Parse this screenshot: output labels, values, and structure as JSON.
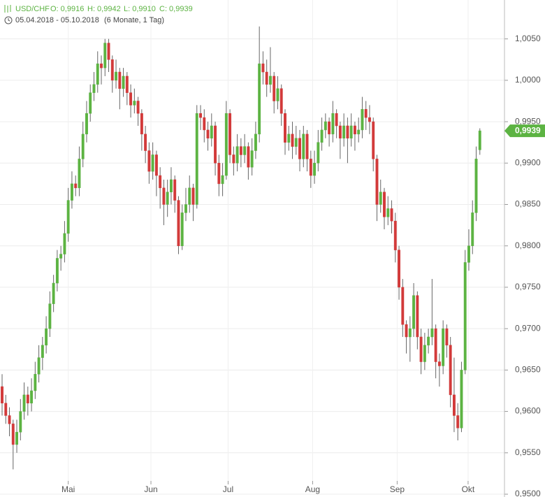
{
  "chart_data": {
    "type": "candlestick",
    "header": {
      "symbol": "USD/CHF",
      "ohlc": [
        "O: 0,9916",
        "H: 0,9942",
        "L: 0,9910",
        "C: 0,9939"
      ],
      "range": "05.04.2018 - 05.10.2018",
      "period": "(6 Monate, 1 Tag)"
    },
    "up_color": "#5cb342",
    "down_color": "#d23a3a",
    "grid": true,
    "ylim": [
      0.95,
      1.0097
    ],
    "yticks": [
      {
        "value": 0.95,
        "label": "0,9500"
      },
      {
        "value": 0.955,
        "label": "0,9550"
      },
      {
        "value": 0.96,
        "label": "0,9600"
      },
      {
        "value": 0.965,
        "label": "0,9650"
      },
      {
        "value": 0.97,
        "label": "0,9700"
      },
      {
        "value": 0.975,
        "label": "0,9750"
      },
      {
        "value": 0.98,
        "label": "0,9800"
      },
      {
        "value": 0.985,
        "label": "0,9850"
      },
      {
        "value": 0.99,
        "label": "0,9900"
      },
      {
        "value": 0.995,
        "label": "0,9950"
      },
      {
        "value": 1.0,
        "label": "1,0000"
      },
      {
        "value": 1.005,
        "label": "1,0050"
      }
    ],
    "xlim": [
      -0.57,
      136.7
    ],
    "xticks": [
      {
        "value": 18,
        "label": "Mai"
      },
      {
        "value": 40.5,
        "label": "Jun"
      },
      {
        "value": 61.5,
        "label": "Jul"
      },
      {
        "value": 84.5,
        "label": "Aug"
      },
      {
        "value": 107.5,
        "label": "Sep"
      },
      {
        "value": 126.8,
        "label": "Okt"
      }
    ],
    "last_price": {
      "value": 0.9939,
      "label": "0,9939"
    },
    "candles": [
      [
        0.963,
        0.9645,
        0.9595,
        0.961
      ],
      [
        0.961,
        0.962,
        0.9585,
        0.9595
      ],
      [
        0.9595,
        0.9605,
        0.957,
        0.9585
      ],
      [
        0.9585,
        0.959,
        0.953,
        0.956
      ],
      [
        0.956,
        0.959,
        0.955,
        0.9575
      ],
      [
        0.9575,
        0.9615,
        0.9565,
        0.96
      ],
      [
        0.96,
        0.9635,
        0.959,
        0.962
      ],
      [
        0.962,
        0.963,
        0.9595,
        0.961
      ],
      [
        0.961,
        0.964,
        0.96,
        0.9625
      ],
      [
        0.9625,
        0.966,
        0.9615,
        0.9645
      ],
      [
        0.9645,
        0.968,
        0.9635,
        0.9665
      ],
      [
        0.9665,
        0.969,
        0.965,
        0.968
      ],
      [
        0.968,
        0.9715,
        0.967,
        0.97
      ],
      [
        0.97,
        0.9745,
        0.969,
        0.973
      ],
      [
        0.973,
        0.9765,
        0.972,
        0.9755
      ],
      [
        0.9755,
        0.9795,
        0.9745,
        0.9785
      ],
      [
        0.9785,
        0.98,
        0.977,
        0.979
      ],
      [
        0.979,
        0.983,
        0.978,
        0.9815
      ],
      [
        0.9815,
        0.987,
        0.9805,
        0.9855
      ],
      [
        0.9855,
        0.989,
        0.9845,
        0.9875
      ],
      [
        0.9875,
        0.9885,
        0.986,
        0.987
      ],
      [
        0.987,
        0.992,
        0.986,
        0.9905
      ],
      [
        0.9905,
        0.995,
        0.9895,
        0.9935
      ],
      [
        0.9935,
        0.9975,
        0.9925,
        0.996
      ],
      [
        0.996,
        0.9995,
        0.995,
        0.9985
      ],
      [
        0.9985,
        1.001,
        0.9975,
        0.9995
      ],
      [
        0.9995,
        1.0035,
        0.9985,
        1.002
      ],
      [
        1.002,
        1.003,
        0.9995,
        1.0015
      ],
      [
        1.0015,
        1.005,
        1.0005,
        1.0045
      ],
      [
        1.0045,
        1.005,
        1.001,
        1.0025
      ],
      [
        1.0025,
        1.003,
        0.9985,
        1.0
      ],
      [
        1.0,
        1.0025,
        0.999,
        1.001
      ],
      [
        1.001,
        1.0015,
        0.9965,
        0.999
      ],
      [
        0.999,
        1.0015,
        0.998,
        1.0005
      ],
      [
        1.0005,
        1.001,
        0.997,
        0.9985
      ],
      [
        0.9985,
        0.9995,
        0.9955,
        0.997
      ],
      [
        0.997,
        0.999,
        0.996,
        0.9975
      ],
      [
        0.9975,
        0.998,
        0.9945,
        0.996
      ],
      [
        0.996,
        0.9965,
        0.9915,
        0.9935
      ],
      [
        0.9935,
        0.9945,
        0.99,
        0.9915
      ],
      [
        0.9915,
        0.9925,
        0.9875,
        0.989
      ],
      [
        0.989,
        0.9925,
        0.988,
        0.991
      ],
      [
        0.991,
        0.9915,
        0.986,
        0.9885
      ],
      [
        0.9885,
        0.9895,
        0.9845,
        0.987
      ],
      [
        0.987,
        0.988,
        0.9825,
        0.985
      ],
      [
        0.985,
        0.988,
        0.9835,
        0.9865
      ],
      [
        0.9865,
        0.9895,
        0.985,
        0.988
      ],
      [
        0.988,
        0.9885,
        0.984,
        0.9855
      ],
      [
        0.9855,
        0.986,
        0.979,
        0.98
      ],
      [
        0.98,
        0.985,
        0.9795,
        0.984
      ],
      [
        0.984,
        0.987,
        0.983,
        0.985
      ],
      [
        0.985,
        0.9885,
        0.984,
        0.987
      ],
      [
        0.987,
        0.9875,
        0.983,
        0.985
      ],
      [
        0.985,
        0.997,
        0.9845,
        0.996
      ],
      [
        0.996,
        0.997,
        0.994,
        0.9955
      ],
      [
        0.9955,
        0.9965,
        0.9925,
        0.994
      ],
      [
        0.994,
        0.995,
        0.9915,
        0.993
      ],
      [
        0.993,
        0.996,
        0.992,
        0.9945
      ],
      [
        0.9945,
        0.995,
        0.9885,
        0.99
      ],
      [
        0.99,
        0.991,
        0.986,
        0.9875
      ],
      [
        0.9875,
        0.99,
        0.986,
        0.9885
      ],
      [
        0.9885,
        0.9975,
        0.988,
        0.996
      ],
      [
        0.996,
        0.9965,
        0.99,
        0.991
      ],
      [
        0.991,
        0.992,
        0.9885,
        0.99
      ],
      [
        0.99,
        0.9935,
        0.989,
        0.992
      ],
      [
        0.992,
        0.993,
        0.9895,
        0.991
      ],
      [
        0.991,
        0.9935,
        0.99,
        0.992
      ],
      [
        0.992,
        0.9925,
        0.988,
        0.9895
      ],
      [
        0.9895,
        0.993,
        0.9885,
        0.9915
      ],
      [
        0.9915,
        0.995,
        0.9905,
        0.9935
      ],
      [
        0.9935,
        1.0065,
        0.9925,
        1.002
      ],
      [
        1.002,
        1.0035,
        0.9995,
        1.001
      ],
      [
        1.001,
        1.0025,
        0.998,
        0.9995
      ],
      [
        0.9995,
        1.004,
        0.9985,
        1.0005
      ],
      [
        1.0005,
        1.001,
        0.996,
        0.9975
      ],
      [
        0.9975,
        1.0005,
        0.9965,
        0.999
      ],
      [
        0.999,
        0.9995,
        0.9945,
        0.996
      ],
      [
        0.996,
        0.9965,
        0.991,
        0.9925
      ],
      [
        0.9925,
        0.9945,
        0.9915,
        0.9935
      ],
      [
        0.9935,
        0.995,
        0.9905,
        0.992
      ],
      [
        0.992,
        0.9945,
        0.991,
        0.993
      ],
      [
        0.993,
        0.994,
        0.989,
        0.9905
      ],
      [
        0.9905,
        0.9945,
        0.9895,
        0.9935
      ],
      [
        0.9935,
        0.994,
        0.989,
        0.9905
      ],
      [
        0.9905,
        0.9915,
        0.987,
        0.9885
      ],
      [
        0.9885,
        0.9915,
        0.9875,
        0.99
      ],
      [
        0.99,
        0.994,
        0.989,
        0.9925
      ],
      [
        0.9925,
        0.9955,
        0.9915,
        0.994
      ],
      [
        0.994,
        0.996,
        0.993,
        0.995
      ],
      [
        0.995,
        0.9955,
        0.992,
        0.9935
      ],
      [
        0.9935,
        0.9975,
        0.9925,
        0.996
      ],
      [
        0.996,
        0.9965,
        0.993,
        0.9945
      ],
      [
        0.9945,
        0.995,
        0.9905,
        0.993
      ],
      [
        0.993,
        0.996,
        0.992,
        0.9945
      ],
      [
        0.9945,
        0.9955,
        0.99,
        0.993
      ],
      [
        0.993,
        0.996,
        0.992,
        0.9945
      ],
      [
        0.9945,
        0.995,
        0.9915,
        0.9935
      ],
      [
        0.9935,
        0.9955,
        0.9925,
        0.994
      ],
      [
        0.994,
        0.998,
        0.993,
        0.9965
      ],
      [
        0.9965,
        0.9975,
        0.994,
        0.9955
      ],
      [
        0.9955,
        0.997,
        0.9935,
        0.995
      ],
      [
        0.995,
        0.9955,
        0.989,
        0.9905
      ],
      [
        0.9905,
        0.991,
        0.983,
        0.985
      ],
      [
        0.985,
        0.988,
        0.984,
        0.9865
      ],
      [
        0.9865,
        0.987,
        0.982,
        0.9835
      ],
      [
        0.9835,
        0.986,
        0.9825,
        0.9845
      ],
      [
        0.9845,
        0.9855,
        0.9815,
        0.983
      ],
      [
        0.983,
        0.984,
        0.978,
        0.9795
      ],
      [
        0.9795,
        0.98,
        0.9735,
        0.975
      ],
      [
        0.975,
        0.976,
        0.969,
        0.9705
      ],
      [
        0.9705,
        0.971,
        0.967,
        0.969
      ],
      [
        0.969,
        0.9715,
        0.966,
        0.97
      ],
      [
        0.97,
        0.9755,
        0.969,
        0.974
      ],
      [
        0.974,
        0.9745,
        0.9675,
        0.969
      ],
      [
        0.969,
        0.97,
        0.9645,
        0.966
      ],
      [
        0.966,
        0.9695,
        0.965,
        0.968
      ],
      [
        0.968,
        0.97,
        0.967,
        0.969
      ],
      [
        0.969,
        0.976,
        0.968,
        0.97
      ],
      [
        0.97,
        0.9705,
        0.964,
        0.966
      ],
      [
        0.966,
        0.967,
        0.963,
        0.9655
      ],
      [
        0.9655,
        0.971,
        0.9645,
        0.97
      ],
      [
        0.97,
        0.9705,
        0.9665,
        0.968
      ],
      [
        0.968,
        0.969,
        0.9605,
        0.962
      ],
      [
        0.962,
        0.9665,
        0.9575,
        0.9595
      ],
      [
        0.9595,
        0.961,
        0.9565,
        0.958
      ],
      [
        0.958,
        0.966,
        0.9575,
        0.965
      ],
      [
        0.965,
        0.9795,
        0.9645,
        0.978
      ],
      [
        0.978,
        0.982,
        0.977,
        0.98
      ],
      [
        0.98,
        0.9855,
        0.979,
        0.984
      ],
      [
        0.984,
        0.992,
        0.983,
        0.9905
      ],
      [
        0.9916,
        0.9942,
        0.991,
        0.9939
      ]
    ]
  }
}
